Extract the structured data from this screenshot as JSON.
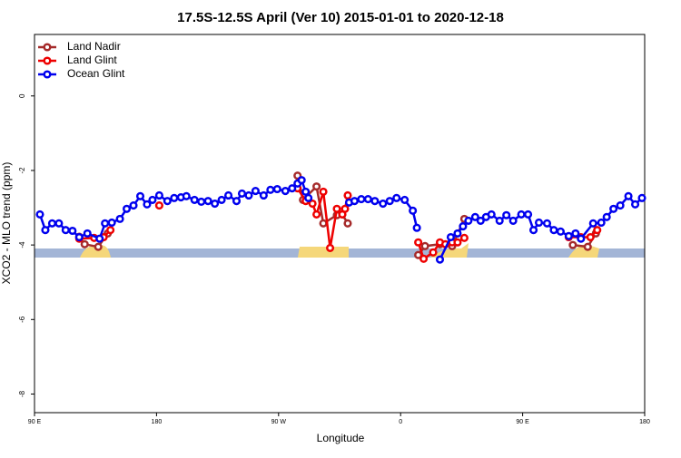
{
  "chart_data": {
    "type": "line",
    "title": "17.5S-12.5S April (Ver 10)   2015-01-01 to 2020-12-18",
    "xlabel": "Longitude",
    "ylabel": "XCO2 - MLO trend (ppm)",
    "xlim": [
      90,
      540
    ],
    "ylim": [
      -8.5,
      1.65
    ],
    "xticks": [
      {
        "value": 90,
        "label": "90 E"
      },
      180,
      {
        "value": 270,
        "label": "90 W"
      },
      {
        "value": 360,
        "label": "0"
      },
      {
        "value": 450,
        "label": "90 E"
      },
      {
        "value": 540,
        "label": "180"
      }
    ],
    "yticks": [
      0,
      -2,
      -4,
      -6,
      -8
    ],
    "legend": "top-left",
    "series": [
      {
        "name": "Land Nadir",
        "color": "#a52a2a",
        "x": [
          123,
          127,
          137,
          144,
          null,
          284,
          288,
          298,
          303,
          313,
          317,
          321,
          null,
          373,
          378,
          389,
          398,
          407,
          null,
          487,
          498,
          504
        ],
        "values": [
          -3.78,
          -3.98,
          -4.05,
          -3.69,
          null,
          -2.14,
          -2.79,
          -2.43,
          -3.42,
          -3.2,
          -3.18,
          -3.42,
          null,
          -4.27,
          -4.03,
          -3.98,
          -4.03,
          -3.3,
          null,
          -4.0,
          -4.05,
          -3.69
        ]
      },
      {
        "name": "Land Glint",
        "color": "#ee0000",
        "x": [
          123,
          134,
          141,
          146,
          null,
          182,
          null,
          284,
          290,
          295,
          298,
          303,
          308,
          313,
          317,
          319,
          321,
          null,
          373,
          377,
          384,
          389,
          393,
          398,
          402,
          407,
          null,
          484,
          493,
          500,
          505
        ],
        "values": [
          -3.83,
          -3.81,
          -3.79,
          -3.6,
          null,
          -2.94,
          null,
          -2.48,
          -2.82,
          -2.89,
          -3.18,
          -2.57,
          -4.08,
          -3.03,
          -3.18,
          -3.03,
          -2.67,
          null,
          -3.93,
          -4.37,
          -4.2,
          -3.93,
          -3.98,
          -3.93,
          -3.93,
          -3.81,
          null,
          -3.79,
          -3.79,
          -3.79,
          -3.6
        ]
      },
      {
        "name": "Ocean Glint",
        "color": "#0000ee",
        "x": [
          94,
          98,
          103,
          108,
          113,
          118,
          123,
          129,
          138,
          142,
          147,
          153,
          158,
          163,
          168,
          173,
          177,
          182,
          188,
          193,
          198,
          202,
          208,
          213,
          218,
          223,
          228,
          233,
          239,
          243,
          248,
          253,
          259,
          264,
          269,
          275,
          280,
          284,
          287,
          290,
          292,
          null,
          322,
          326,
          331,
          336,
          341,
          347,
          352,
          357,
          363,
          369,
          372,
          null,
          389,
          397,
          402,
          406,
          410,
          415,
          419,
          423,
          427,
          433,
          438,
          443,
          449,
          454,
          458,
          462,
          468,
          473,
          478,
          484,
          489,
          493,
          502,
          508,
          512,
          517,
          522,
          528,
          533,
          538
        ],
        "values": [
          -3.18,
          -3.6,
          -3.42,
          -3.42,
          -3.6,
          -3.62,
          -3.79,
          -3.69,
          -3.83,
          -3.42,
          -3.4,
          -3.3,
          -3.03,
          -2.94,
          -2.69,
          -2.91,
          -2.79,
          -2.67,
          -2.82,
          -2.74,
          -2.72,
          -2.69,
          -2.79,
          -2.84,
          -2.82,
          -2.89,
          -2.79,
          -2.67,
          -2.82,
          -2.62,
          -2.67,
          -2.55,
          -2.67,
          -2.52,
          -2.5,
          -2.55,
          -2.48,
          -2.35,
          -2.26,
          -2.57,
          -2.74,
          null,
          -2.86,
          -2.82,
          -2.77,
          -2.77,
          -2.82,
          -2.89,
          -2.82,
          -2.74,
          -2.79,
          -3.08,
          -3.54,
          null,
          -4.39,
          -3.79,
          -3.69,
          -3.5,
          -3.35,
          -3.25,
          -3.35,
          -3.25,
          -3.18,
          -3.35,
          -3.2,
          -3.35,
          -3.18,
          -3.18,
          -3.6,
          -3.4,
          -3.42,
          -3.6,
          -3.64,
          -3.76,
          -3.69,
          -3.83,
          -3.42,
          -3.4,
          -3.25,
          -3.03,
          -2.94,
          -2.69,
          -2.91,
          -2.74
        ]
      }
    ]
  }
}
